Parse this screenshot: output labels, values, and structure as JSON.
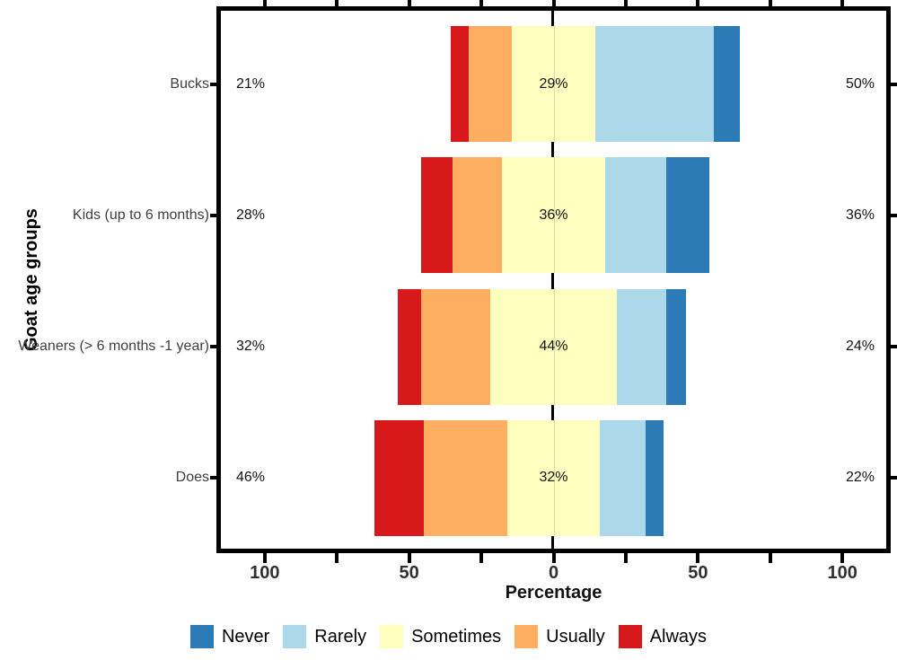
{
  "chart_data": {
    "type": "bar",
    "variant": "diverging-stacked-likert",
    "title": "",
    "xlabel": "Percentage",
    "ylabel": "Goat age groups",
    "xlim": [
      -115,
      115
    ],
    "x_major_tick_values": [
      -100,
      -50,
      0,
      50,
      100
    ],
    "x_major_tick_labels": [
      "100",
      "50",
      "0",
      "50",
      "100"
    ],
    "x_minor_tick_step": 25,
    "grid": false,
    "legend_position": "bottom",
    "stack_order_left_to_right": [
      "Always",
      "Usually",
      "Sometimes",
      "Rarely",
      "Never"
    ],
    "legend": [
      {
        "label": "Never",
        "color": "#2C7BB6"
      },
      {
        "label": "Rarely",
        "color": "#ABD9E9"
      },
      {
        "label": "Sometimes",
        "color": "#FFFFBF"
      },
      {
        "label": "Usually",
        "color": "#FDAE61"
      },
      {
        "label": "Always",
        "color": "#D7191C"
      }
    ],
    "categories": [
      "Bucks",
      "Kids (up to 6 months)",
      "Weaners (> 6 months -1 year)",
      "Does"
    ],
    "rows": [
      {
        "category": "Bucks",
        "values": {
          "Always": 6,
          "Usually": 15,
          "Sometimes": 29,
          "Rarely": 41,
          "Never": 9
        },
        "labels": {
          "left": "21%",
          "center": "29%",
          "right": "50%"
        }
      },
      {
        "category": "Kids (up to 6 months)",
        "values": {
          "Always": 11,
          "Usually": 17,
          "Sometimes": 36,
          "Rarely": 21,
          "Never": 15
        },
        "labels": {
          "left": "28%",
          "center": "36%",
          "right": "36%"
        }
      },
      {
        "category": "Weaners (> 6 months -1 year)",
        "values": {
          "Always": 8,
          "Usually": 24,
          "Sometimes": 44,
          "Rarely": 17,
          "Never": 7
        },
        "labels": {
          "left": "32%",
          "center": "44%",
          "right": "24%"
        }
      },
      {
        "category": "Does",
        "values": {
          "Always": 17,
          "Usually": 29,
          "Sometimes": 32,
          "Rarely": 16,
          "Never": 6
        },
        "labels": {
          "left": "46%",
          "center": "32%",
          "right": "22%"
        }
      }
    ]
  }
}
